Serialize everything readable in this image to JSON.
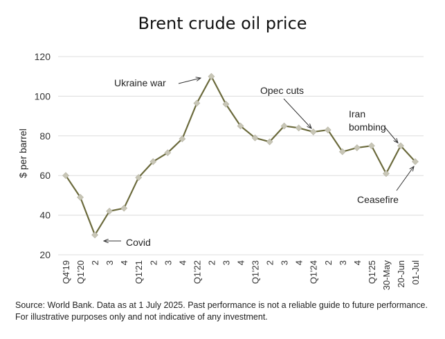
{
  "chart_data": {
    "type": "line",
    "title": "Brent crude oil price",
    "xlabel": "",
    "ylabel": "$ per barrel",
    "categories": [
      "Q4'19",
      "Q1'20",
      "2",
      "3",
      "4",
      "Q1'21",
      "2",
      "3",
      "4",
      "Q1'22",
      "2",
      "3",
      "4",
      "Q1'23",
      "2",
      "3",
      "4",
      "Q1'24",
      "2",
      "3",
      "4",
      "Q1'25",
      "30-May",
      "20-Jun",
      "01-Jul"
    ],
    "values": [
      60,
      49,
      30,
      42,
      43.5,
      59,
      67,
      71.5,
      78.5,
      96.5,
      110,
      96,
      85,
      79,
      77,
      85,
      84,
      82,
      83,
      72,
      74,
      75,
      61,
      75,
      67
    ],
    "ylim": [
      20,
      120
    ],
    "yticks": [
      20,
      40,
      60,
      80,
      100,
      120
    ],
    "grid": true,
    "line_color": "#6b6a3c",
    "marker_color": "#c8c6b6",
    "annotations": [
      {
        "text": "Ukraine war",
        "point": "2"
      },
      {
        "text": "Covid",
        "point": "2"
      },
      {
        "text": "Opec cuts",
        "point": "Q1'24"
      },
      {
        "text": "Iran bombing",
        "point": "20-Jun"
      },
      {
        "text": "Ceasefire",
        "point": "01-Jul"
      }
    ]
  },
  "source": "Source: World Bank. Data as at 1 July 2025. Past performance is not a reliable guide to future performance. For illustrative purposes only and not indicative of any investment."
}
